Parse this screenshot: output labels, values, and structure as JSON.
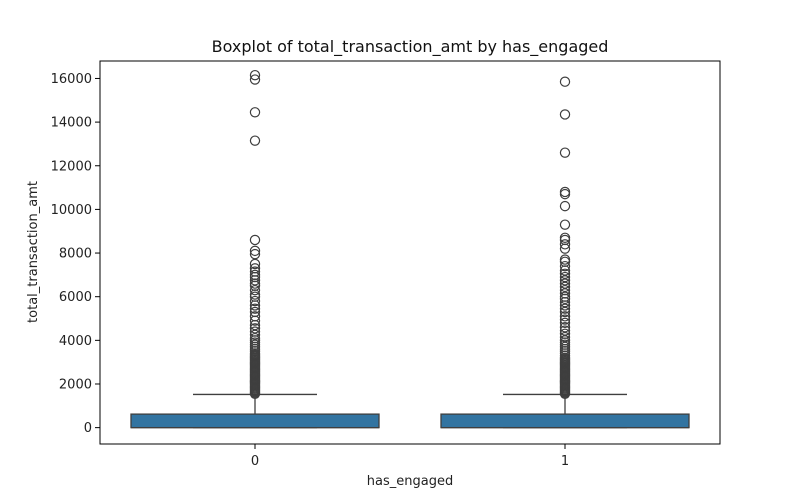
{
  "chart_data": {
    "type": "box",
    "title": "Boxplot of total_transaction_amt by has_engaged",
    "xlabel": "has_engaged",
    "ylabel": "total_transaction_amt",
    "categories": [
      "0",
      "1"
    ],
    "ylim": [
      -750,
      16800
    ],
    "yticks": [
      0,
      2000,
      4000,
      6000,
      8000,
      10000,
      12000,
      14000,
      16000
    ],
    "grid": false,
    "box_color": "#3274a1",
    "boxes": [
      {
        "category": "0",
        "whisker_low": 0,
        "q1": 0,
        "median": 0,
        "q3": 620,
        "whisker_high": 1520,
        "outliers": [
          1550,
          1600,
          1650,
          1700,
          1750,
          1800,
          1850,
          1900,
          1950,
          2000,
          2050,
          2100,
          2150,
          2200,
          2250,
          2300,
          2350,
          2400,
          2450,
          2500,
          2550,
          2600,
          2650,
          2700,
          2750,
          2800,
          2850,
          2900,
          2950,
          3000,
          3050,
          3100,
          3150,
          3200,
          3250,
          3300,
          3350,
          3400,
          3500,
          3600,
          3700,
          3800,
          3900,
          4000,
          4100,
          4250,
          4400,
          4550,
          4700,
          4900,
          5100,
          5300,
          5450,
          5600,
          5800,
          6000,
          6100,
          6300,
          6500,
          6600,
          6750,
          6900,
          7000,
          7150,
          7300,
          7500,
          7950,
          8100,
          8600,
          13150,
          14450,
          15950,
          16150
        ]
      },
      {
        "category": "1",
        "whisker_low": 0,
        "q1": 0,
        "median": 0,
        "q3": 620,
        "whisker_high": 1520,
        "outliers": [
          1550,
          1600,
          1650,
          1700,
          1750,
          1800,
          1850,
          1900,
          1950,
          2000,
          2050,
          2100,
          2150,
          2200,
          2250,
          2300,
          2350,
          2400,
          2450,
          2500,
          2550,
          2600,
          2650,
          2700,
          2750,
          2800,
          2850,
          2900,
          2950,
          3000,
          3050,
          3100,
          3150,
          3200,
          3300,
          3400,
          3500,
          3600,
          3700,
          3800,
          3900,
          4000,
          4150,
          4300,
          4450,
          4600,
          4800,
          4950,
          5100,
          5300,
          5450,
          5600,
          5750,
          5900,
          6000,
          6150,
          6300,
          6450,
          6600,
          6750,
          6900,
          7050,
          7200,
          7400,
          7600,
          7700,
          8200,
          8400,
          8600,
          8700,
          9300,
          10150,
          10700,
          10800,
          12600,
          14350,
          15850
        ]
      }
    ]
  }
}
